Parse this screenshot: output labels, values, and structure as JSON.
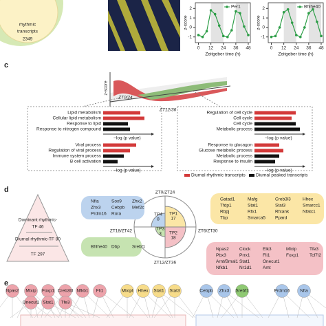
{
  "panel_b": {
    "venn": {
      "lines": [
        "rhythmic",
        "transcripts"
      ],
      "count": "2349"
    },
    "charts": [
      {
        "type": "line",
        "legend": "Per1",
        "color": "#2e9e48",
        "x": [
          0,
          4,
          8,
          12,
          16,
          20,
          24,
          28,
          32,
          36,
          40,
          44,
          48
        ],
        "values": [
          -0.8,
          -1,
          -0.4,
          1.8,
          1.4,
          0.2,
          -0.9,
          -1,
          -0.3,
          1.7,
          1.5,
          0.1,
          -0.8
        ],
        "xlim": [
          -3,
          50
        ],
        "ylim": [
          -1.6,
          2.6
        ],
        "xticks": [
          0,
          12,
          24,
          36,
          48
        ],
        "yticks": [
          -1,
          0,
          1,
          2
        ],
        "shaded": [
          [
            12,
            24
          ],
          [
            36,
            48
          ]
        ],
        "ylabel": "z-score",
        "xlabel": "Zeitgeber time (h)"
      },
      {
        "type": "line",
        "legend": "Bhlhe40",
        "color": "#2e9e48",
        "x": [
          0,
          4,
          8,
          12,
          16,
          20,
          24,
          28,
          32,
          36,
          40,
          44,
          48
        ],
        "values": [
          -1,
          -0.9,
          0,
          1.6,
          1.9,
          0.5,
          -0.8,
          -1,
          0,
          1.5,
          1.9,
          0.6,
          -0.9
        ],
        "xlim": [
          -3,
          50
        ],
        "ylim": [
          -1.6,
          2.6
        ],
        "xticks": [
          0,
          12,
          24,
          36,
          48
        ],
        "yticks": [
          -1,
          0,
          1,
          2
        ],
        "shaded": [
          [
            12,
            24
          ],
          [
            36,
            48
          ]
        ],
        "ylabel": "z-score",
        "xlabel": "Zeitgeber time (h)"
      }
    ]
  },
  "panel_c": {
    "label": "c",
    "ylabel": "z-score",
    "zt": [
      "ZT0/24",
      "ZT12/36"
    ],
    "boxes": [
      {
        "groups": [
          {
            "terms": [
              "Lipid metabolism",
              "Cellular lipid metabolism",
              "Response to lipid",
              "Response to nitrogen compound"
            ],
            "values": [
              9,
              10,
              6,
              6.5
            ],
            "colors": [
              "#d33a3a",
              "#d33a3a",
              "#111111",
              "#111111"
            ],
            "xlabel": "–log (p value)"
          },
          {
            "terms": [
              "Viral process",
              "Regulation of viral process",
              "Immune system process",
              "B cell activation"
            ],
            "values": [
              8,
              6.5,
              5,
              3.5
            ],
            "colors": [
              "#d33a3a",
              "#d33a3a",
              "#111111",
              "#111111"
            ],
            "xlabel": "–log (p value)"
          }
        ]
      },
      {
        "groups": [
          {
            "terms": [
              "Regulation of cell cycle",
              "Cell cycle",
              "Cell cycle",
              "Metabolic process"
            ],
            "values": [
              10,
              9,
              10,
              11
            ],
            "colors": [
              "#d33a3a",
              "#d33a3a",
              "#111111",
              "#111111"
            ],
            "xlabel": "–log (p value)"
          },
          {
            "terms": [
              "Response to glucagon",
              "Glucose metabolic process",
              "Metabolic process",
              "Response to insulin"
            ],
            "values": [
              6,
              7,
              6,
              5
            ],
            "colors": [
              "#d33a3a",
              "#d33a3a",
              "#111111",
              "#111111"
            ],
            "xlabel": "–log (p value)"
          }
        ]
      }
    ],
    "legend": [
      {
        "name": "Diurnal rhythmic transcripts",
        "color": "#d33a3a"
      },
      {
        "name": "Diurnal peaked transcripts",
        "color": "#111111"
      }
    ]
  },
  "panel_d": {
    "label": "d",
    "pyramid": [
      "Dominant rhythmic-",
      "TF 46",
      "Diurnal rhythmic-TF 80",
      "TF 297"
    ],
    "zt": [
      "ZT0/ZT24",
      "ZT6/ZT30",
      "ZT12/ZT36",
      "ZT18/ZT42"
    ],
    "tp": [
      {
        "name": "TP1",
        "count": "17"
      },
      {
        "name": "TP2",
        "count": "18"
      },
      {
        "name": "TP3",
        "count": "3"
      },
      {
        "name": "TP4",
        "count": "8"
      }
    ],
    "boxes": [
      {
        "color": "#bcd3ee",
        "rows": [
          [
            "Nfia",
            "Sox9",
            "Zhx2"
          ],
          [
            "Zhx3",
            "Cebpb",
            "Mef2c"
          ],
          [
            "Prdm16",
            "Rora"
          ]
        ]
      },
      {
        "color": "#fbe6a6",
        "rows": [
          [
            "Gatad1",
            "Mafg",
            "Creb3l3",
            "Hhex"
          ],
          [
            "Tfdp1",
            "Stat1",
            "Stat3",
            "Smarcc1"
          ],
          [
            "Rbpj",
            "Rfx1",
            "Rfxank",
            "Nfatc1"
          ],
          [
            "Tbp",
            "Smarca5",
            "Ppard"
          ]
        ]
      },
      {
        "color": "#c6e3b1",
        "rows": [
          [
            "Bhlhe40",
            "Dbp",
            "Srebf1"
          ]
        ]
      },
      {
        "color": "#f4c1c6",
        "rows": [
          [
            "Npas2",
            "Clock",
            "Elk3",
            "Mlxip",
            "Tfe3"
          ],
          [
            "Pbx3",
            "Prrx1",
            "Fli1",
            "Foxp1",
            "Tcf7l2"
          ],
          [
            "Arnt/Bmal1",
            "Stat1",
            "Onecut1"
          ],
          [
            "Nfkb1",
            "Nr1d1",
            "Amt"
          ]
        ]
      }
    ]
  },
  "panel_e": {
    "label": "e",
    "nodes": [
      {
        "name": "Npas2",
        "color": "#eda3ab"
      },
      {
        "name": "Mlxip",
        "color": "#eda3ab"
      },
      {
        "name": "Foxp1",
        "color": "#eda3ab"
      },
      {
        "name": "Creb3l3",
        "color": "#eda3ab"
      },
      {
        "name": "Nfkb1",
        "color": "#eda3ab"
      },
      {
        "name": "Fli1",
        "color": "#eda3ab"
      },
      {
        "name": "Onecut1",
        "color": "#eda3ab"
      },
      {
        "name": "Stat1",
        "color": "#eda3ab"
      },
      {
        "name": "Tfe3",
        "color": "#eda3ab"
      },
      {
        "name": "Mlxipl",
        "color": "#f7dc8a"
      },
      {
        "name": "Hhex",
        "color": "#f7dc8a"
      },
      {
        "name": "Stat1",
        "color": "#f7dc8a"
      },
      {
        "name": "Stat3",
        "color": "#f7dc8a"
      },
      {
        "name": "Cebpb",
        "color": "#a9c6ea"
      },
      {
        "name": "Zhx3",
        "color": "#a9c6ea"
      },
      {
        "name": "Srebf1",
        "color": "#8fc973"
      },
      {
        "name": "Prdm16",
        "color": "#a9c6ea"
      },
      {
        "name": "Nfia",
        "color": "#a9c6ea"
      }
    ]
  }
}
